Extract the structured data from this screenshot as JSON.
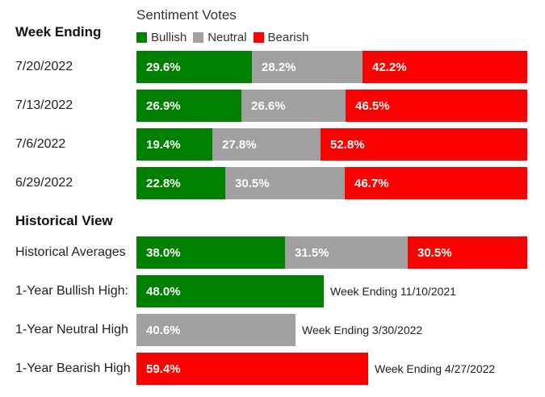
{
  "chart_data": {
    "type": "bar",
    "stacked": true,
    "orientation": "horizontal",
    "title": "Sentiment Votes",
    "legend": [
      "Bullish",
      "Neutral",
      "Bearish"
    ],
    "legend_position": "top",
    "colors": {
      "Bullish": "#008000",
      "Neutral": "#a0a0a0",
      "Bearish": "#ff0000"
    },
    "weekly_header": "Week Ending",
    "categories": [
      "7/20/2022",
      "7/13/2022",
      "7/6/2022",
      "6/29/2022"
    ],
    "series": [
      {
        "name": "Bullish",
        "values": [
          29.6,
          26.9,
          19.4,
          22.8
        ],
        "labels": [
          "29.6%",
          "26.9%",
          "19.4%",
          "22.8%"
        ]
      },
      {
        "name": "Neutral",
        "values": [
          28.2,
          26.6,
          27.8,
          30.5
        ],
        "labels": [
          "28.2%",
          "26.6%",
          "27.8%",
          "30.5%"
        ]
      },
      {
        "name": "Bearish",
        "values": [
          42.2,
          46.5,
          52.8,
          46.7
        ],
        "labels": [
          "42.2%",
          "46.5%",
          "52.8%",
          "46.7%"
        ]
      }
    ],
    "historical": {
      "heading": "Historical View",
      "averages": {
        "label": "Historical Averages",
        "values": [
          38.0,
          31.5,
          30.5
        ],
        "labels": [
          "38.0%",
          "31.5%",
          "30.5%"
        ]
      },
      "highs": [
        {
          "label": "1-Year Bullish High:",
          "series": "Bullish",
          "value": 48.0,
          "value_label": "48.0%",
          "note": "Week Ending 11/10/2021"
        },
        {
          "label": "1-Year Neutral High",
          "series": "Neutral",
          "value": 40.6,
          "value_label": "40.6%",
          "note": "Week Ending 3/30/2022"
        },
        {
          "label": "1-Year Bearish High",
          "series": "Bearish",
          "value": 59.4,
          "value_label": "59.4%",
          "note": "Week Ending 4/27/2022"
        }
      ]
    },
    "xlim": [
      0,
      100
    ]
  }
}
